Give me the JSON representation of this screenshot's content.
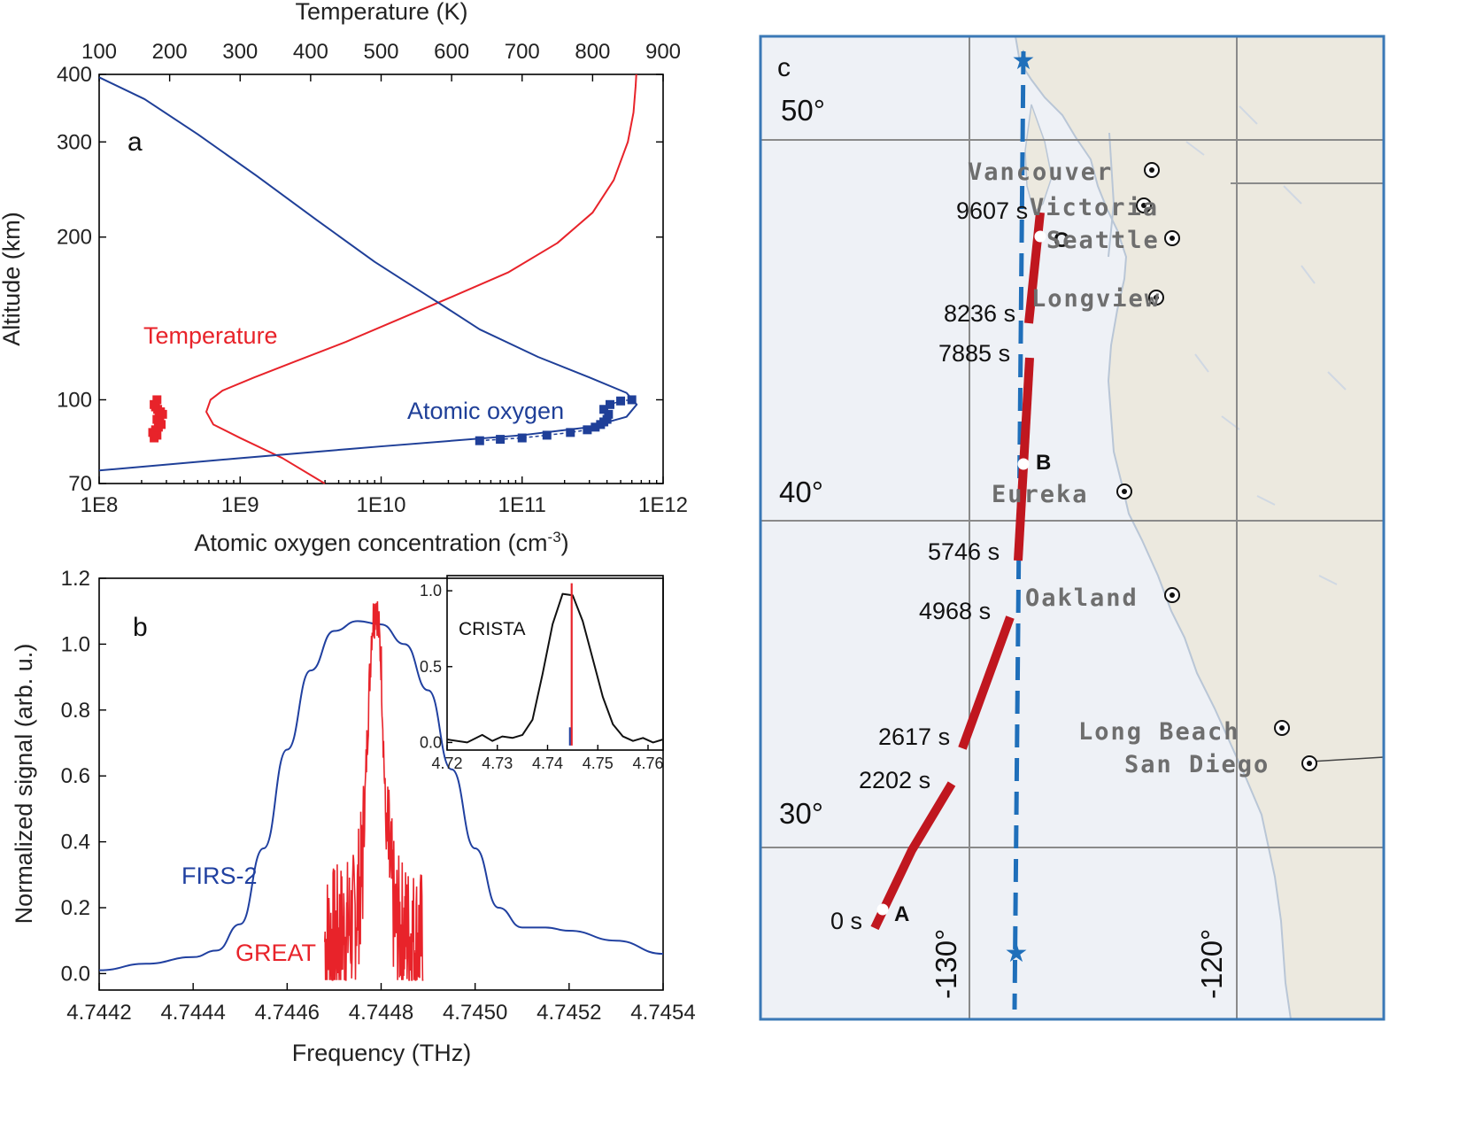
{
  "colors": {
    "temperature": "#e8232a",
    "oxygen": "#1f3f98",
    "great": "#e8232a",
    "firs": "#2040a0",
    "crista": "#111111",
    "track": "#c0171f",
    "flight_line": "#1f6fba",
    "map_frame": "#3a78b6",
    "land": "#ece9df",
    "ocean": "#eef1f6",
    "grid": "#8a8a8a"
  },
  "chart_data": [
    {
      "panel": "a",
      "type": "line",
      "panel_label": "a",
      "xlabel": "Atomic oxygen concentration (cm",
      "xlabel_sup": "-3",
      "xlabel_end": ")",
      "x2label": "Temperature (K)",
      "ylabel": "Altitude (km)",
      "xscale": "log",
      "xlim": [
        100000000.0,
        1000000000000.0
      ],
      "x2lim": [
        100,
        900
      ],
      "ylim": [
        70,
        400
      ],
      "yscale": "log",
      "x_ticks": [
        100000000.0,
        1000000000.0,
        10000000000.0,
        100000000000.0,
        1000000000000.0
      ],
      "x_tick_labels": [
        "1E8",
        "1E9",
        "1E10",
        "1E11",
        "1E12"
      ],
      "x2_ticks": [
        100,
        200,
        300,
        400,
        500,
        600,
        700,
        800,
        900
      ],
      "x2_tick_labels": [
        "100",
        "200",
        "300",
        "400",
        "500",
        "600",
        "700",
        "800",
        "900"
      ],
      "y_ticks": [
        70,
        100,
        200,
        300,
        400
      ],
      "y_tick_labels": [
        "70",
        "100",
        "200",
        "300",
        "400"
      ],
      "annotations": [
        "Temperature",
        "Atomic oxygen"
      ],
      "series": [
        {
          "name": "Temperature",
          "axis": "top",
          "x": [
            420,
            360,
            300,
            262,
            252,
            258,
            275,
            320,
            380,
            450,
            520,
            600,
            680,
            750,
            800,
            830,
            850,
            858,
            861,
            862
          ],
          "y": [
            70,
            78,
            85,
            90,
            95,
            100,
            104,
            110,
            118,
            128,
            140,
            155,
            172,
            195,
            222,
            255,
            300,
            340,
            380,
            400
          ]
        },
        {
          "name": "Atomic oxygen",
          "axis": "bottom",
          "x": [
            100000000.0,
            1000000000.0,
            10000000000.0,
            100000000000.0,
            300000000000.0,
            550000000000.0,
            650000000000.0,
            550000000000.0,
            300000000000.0,
            130000000000.0,
            50000000000.0,
            22000000000.0,
            9000000000.0,
            3500000000.0,
            1300000000.0,
            500000000.0,
            210000000.0,
            100000000.0
          ],
          "y": [
            74,
            78,
            82,
            86,
            89,
            93,
            98,
            103,
            110,
            120,
            135,
            155,
            180,
            215,
            260,
            310,
            360,
            395
          ]
        },
        {
          "name": "Atomic oxygen data",
          "axis": "bottom",
          "marker": "square",
          "x": [
            50000000000.0,
            70000000000.0,
            100000000000.0,
            150000000000.0,
            220000000000.0,
            290000000000.0,
            330000000000.0,
            360000000000.0,
            380000000000.0,
            400000000000.0,
            410000000000.0,
            380000000000.0,
            420000000000.0,
            500000000000.0,
            600000000000.0
          ],
          "y": [
            84,
            84.5,
            85,
            86,
            87,
            88,
            89,
            90,
            91,
            92,
            94,
            96,
            98,
            99.5,
            100
          ]
        },
        {
          "name": "Temperature data",
          "axis": "top",
          "marker": "square",
          "x": [
            178,
            182,
            176,
            180,
            184,
            188,
            186,
            182,
            185,
            190,
            187,
            183,
            180,
            178,
            182
          ],
          "y": [
            85,
            86,
            87,
            88,
            89,
            90,
            91,
            92,
            93,
            94,
            95,
            96,
            97,
            98,
            100
          ]
        }
      ]
    },
    {
      "panel": "b",
      "type": "line",
      "panel_label": "b",
      "xlabel": "Frequency (THz)",
      "ylabel": "Normalized signal (arb. u.)",
      "xlim": [
        4.7442,
        4.7454
      ],
      "ylim": [
        -0.05,
        1.2
      ],
      "x_ticks": [
        4.7442,
        4.7444,
        4.7446,
        4.7448,
        4.745,
        4.7452,
        4.7454
      ],
      "x_tick_labels": [
        "4.7442",
        "4.7444",
        "4.7446",
        "4.7448",
        "4.7450",
        "4.7452",
        "4.7454"
      ],
      "y_ticks": [
        0.0,
        0.2,
        0.4,
        0.6,
        0.8,
        1.0,
        1.2
      ],
      "y_tick_labels": [
        "0.0",
        "0.2",
        "0.4",
        "0.6",
        "0.8",
        "1.0",
        "1.2"
      ],
      "annotations": [
        "FIRS-2",
        "GREAT"
      ],
      "series": [
        {
          "name": "FIRS-2",
          "x": [
            4.7442,
            4.7443,
            4.7444,
            4.74445,
            4.7445,
            4.74455,
            4.7446,
            4.74465,
            4.7447,
            4.74475,
            4.7448,
            4.74485,
            4.7449,
            4.74495,
            4.745,
            4.74505,
            4.7451,
            4.74515,
            4.7452,
            4.7453,
            4.7454
          ],
          "y": [
            0.01,
            0.03,
            0.05,
            0.07,
            0.15,
            0.38,
            0.68,
            0.92,
            1.04,
            1.07,
            1.06,
            1.0,
            0.86,
            0.62,
            0.38,
            0.2,
            0.14,
            0.14,
            0.13,
            0.1,
            0.06
          ]
        },
        {
          "name": "GREAT",
          "x": [
            4.74468,
            4.74471,
            4.74474,
            4.74476,
            4.74477,
            4.74478,
            4.74479,
            4.7448,
            4.74481,
            4.74483,
            4.74486,
            4.74489
          ],
          "y": [
            0.1,
            0.12,
            0.15,
            0.3,
            0.7,
            1.05,
            1.13,
            0.95,
            0.45,
            0.15,
            0.12,
            0.1
          ]
        }
      ]
    },
    {
      "panel": "b-inset",
      "type": "line",
      "title": "CRISTA",
      "xlim": [
        4.72,
        4.763
      ],
      "ylim": [
        -0.05,
        1.1
      ],
      "x_ticks": [
        4.72,
        4.73,
        4.74,
        4.75,
        4.76
      ],
      "x_tick_labels": [
        "4.72",
        "4.73",
        "4.74",
        "4.75",
        "4.76"
      ],
      "y_ticks": [
        0.0,
        0.5,
        1.0
      ],
      "y_tick_labels": [
        "0.0",
        "0.5",
        "1.0"
      ],
      "series": [
        {
          "name": "CRISTA",
          "x": [
            4.72,
            4.724,
            4.727,
            4.729,
            4.731,
            4.733,
            4.735,
            4.737,
            4.739,
            4.741,
            4.743,
            4.745,
            4.747,
            4.749,
            4.751,
            4.753,
            4.755,
            4.757,
            4.759,
            4.761,
            4.763
          ],
          "y": [
            0.02,
            0.0,
            0.05,
            0.01,
            0.04,
            0.03,
            0.05,
            0.15,
            0.45,
            0.78,
            0.98,
            0.97,
            0.8,
            0.55,
            0.3,
            0.12,
            0.04,
            0.01,
            0.03,
            0.0,
            0.02
          ]
        },
        {
          "name": "GREAT",
          "x": [
            4.7448
          ],
          "y": [
            1.05
          ]
        }
      ]
    }
  ],
  "map": {
    "panel_label": "c",
    "lat_labels": [
      "50°",
      "40°",
      "30°"
    ],
    "lon_labels": [
      "-130°",
      "-120°"
    ],
    "cities": [
      "Vancouver",
      "Victoria",
      "Seattle",
      "Longview",
      "Eureka",
      "Oakland",
      "Long Beach",
      "San Diego"
    ],
    "time_labels": [
      "9607 s",
      "8236 s",
      "7885 s",
      "5746 s",
      "4968 s",
      "2617 s",
      "2202 s",
      "0 s"
    ],
    "points": [
      "A",
      "B",
      "C"
    ]
  }
}
